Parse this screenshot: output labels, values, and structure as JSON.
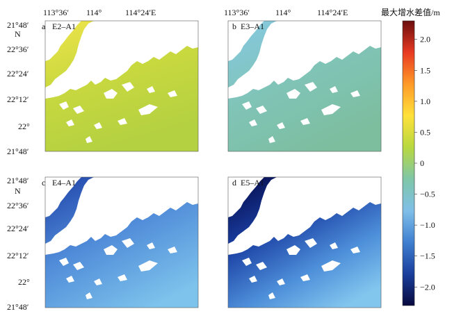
{
  "top_lon_labels": [
    "113°36′",
    "114°",
    "114°24′E"
  ],
  "lat_labels": [
    "21°48′",
    "N",
    "22°36′",
    "22°24′",
    "22°12′",
    "22°",
    "21°48′"
  ],
  "panels": [
    {
      "id": "a",
      "letter": "a",
      "title": "E2–A1",
      "palette": "e2"
    },
    {
      "id": "b",
      "letter": "b",
      "title": "E3–A1",
      "palette": "e3"
    },
    {
      "id": "c",
      "letter": "c",
      "title": "E4–A1",
      "palette": "e4"
    },
    {
      "id": "d",
      "letter": "d",
      "title": "E5–A1",
      "palette": "e5"
    }
  ],
  "colorbar": {
    "title": "最大增水差值/m",
    "ticks": [
      "2.0",
      "1.5",
      "1.0",
      "0.5",
      "0",
      "−0.5",
      "−1.0",
      "−1.5",
      "−2.0"
    ],
    "tick_values": [
      2.0,
      1.5,
      1.0,
      0.5,
      0,
      -0.5,
      -1.0,
      -1.5,
      -2.0
    ],
    "range": [
      -2.3,
      2.3
    ],
    "colors": [
      "#08093e",
      "#1a3f9c",
      "#3f7fd0",
      "#7fbfe8",
      "#7fc6a8",
      "#b8d840",
      "#ffe13a",
      "#ff9a28",
      "#e83a22",
      "#6b0d0d"
    ]
  },
  "palettes": {
    "e2": {
      "north": "#e6e24a",
      "south": "#b6d240",
      "land": "#ffffff"
    },
    "e3": {
      "north": "#80c6df",
      "south": "#7fc0a6",
      "land": "#ffffff"
    },
    "e4": {
      "north": "#2b52b3",
      "mid": "#5e9be0",
      "south": "#77bdea",
      "land": "#ffffff"
    },
    "e5": {
      "north": "#0a1055",
      "mid": "#2f62c6",
      "south": "#7cc0ec",
      "land": "#ffffff"
    }
  }
}
